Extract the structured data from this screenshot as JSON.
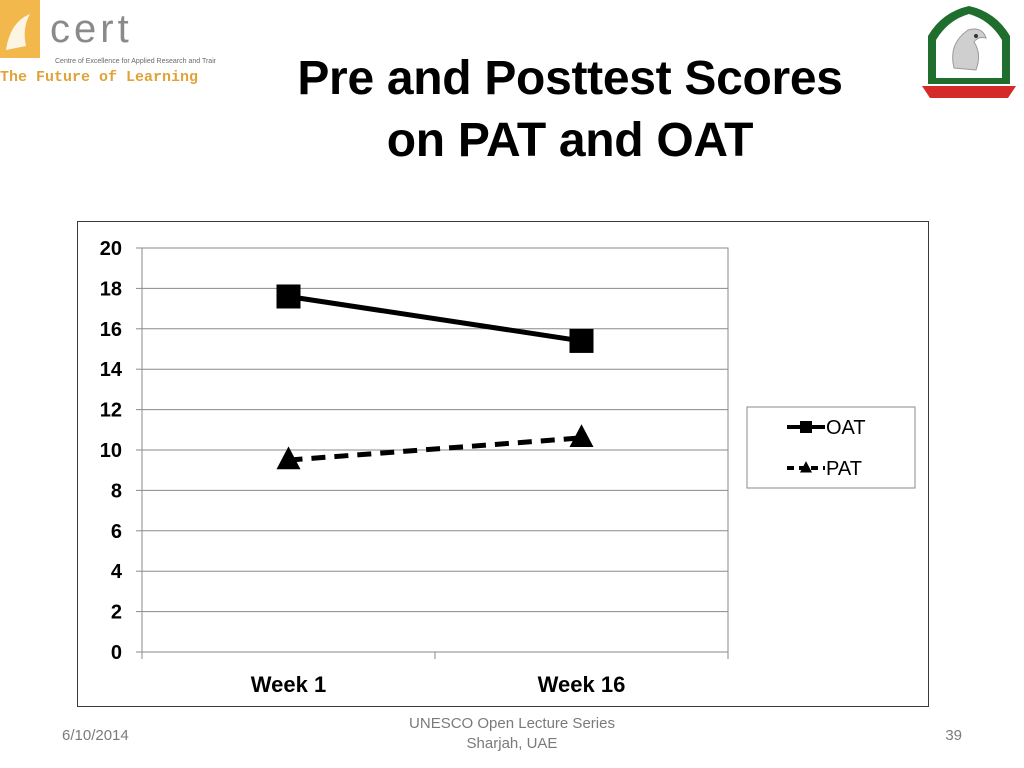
{
  "header": {
    "logo_left": {
      "brand": "CERT",
      "subtitle": "Centre of Excellence for Applied Research and Training",
      "tagline": "The Future of Learning"
    },
    "logo_right": {
      "icon": "falcon-emblem-icon"
    }
  },
  "slide": {
    "title_line1": "Pre and Posttest Scores",
    "title_line2": "on PAT and OAT"
  },
  "chart_data": {
    "type": "line",
    "categories": [
      "Week 1",
      "Week 16"
    ],
    "series": [
      {
        "name": "OAT",
        "values": [
          17.6,
          15.4
        ],
        "marker": "square",
        "line_style": "solid",
        "color": "#000000"
      },
      {
        "name": "PAT",
        "values": [
          9.5,
          10.6
        ],
        "marker": "triangle",
        "line_style": "dashed",
        "color": "#000000"
      }
    ],
    "yticks": [
      "0",
      "2",
      "4",
      "6",
      "8",
      "10",
      "12",
      "14",
      "16",
      "18",
      "20"
    ],
    "ylim": [
      0,
      20
    ],
    "grid": true,
    "legend": "right"
  },
  "footer": {
    "date": "6/10/2014",
    "center_line1": "UNESCO Open Lecture Series",
    "center_line2": "Sharjah, UAE",
    "page": "39"
  }
}
